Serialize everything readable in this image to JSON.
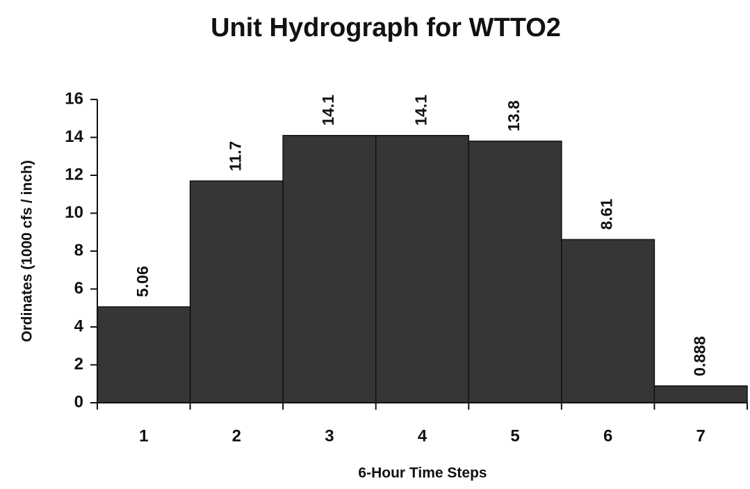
{
  "chart_data": {
    "type": "bar",
    "title": "Unit Hydrograph for WTTO2",
    "x_label": "6-Hour Time Steps",
    "y_label": "Ordinates (1000 cfs / inch)",
    "categories": [
      "1",
      "2",
      "3",
      "4",
      "5",
      "6",
      "7"
    ],
    "values": [
      5.06,
      11.7,
      14.1,
      14.1,
      13.8,
      8.61,
      0.888
    ],
    "color": "#363636",
    "ylim": [
      0,
      16
    ],
    "yticks": [
      0,
      2,
      4,
      6,
      8,
      10,
      12,
      14,
      16
    ],
    "grid": false
  }
}
